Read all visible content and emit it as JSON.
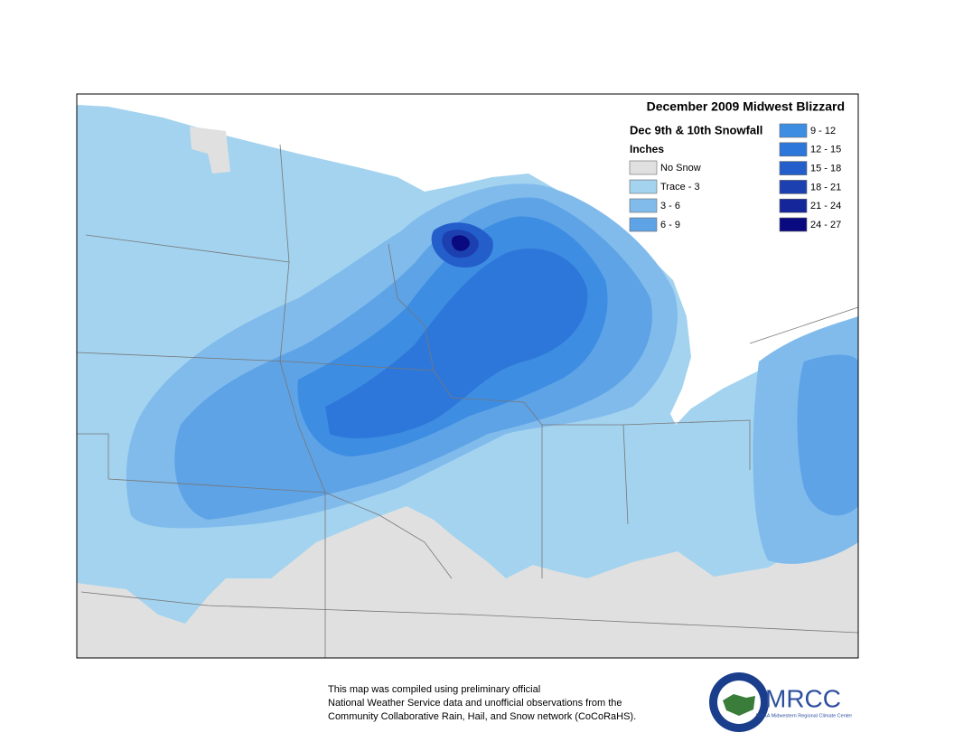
{
  "map": {
    "title": "December 2009 Midwest Blizzard",
    "subtitle": "Dec 9th & 10th Snowfall",
    "units": "Inches",
    "legend": [
      {
        "label": "No Snow",
        "color": "#e0e0e0"
      },
      {
        "label": "Trace - 3",
        "color": "#a3d3ef"
      },
      {
        "label": "3 - 6",
        "color": "#80bbec"
      },
      {
        "label": "6 - 9",
        "color": "#5ea3e6"
      },
      {
        "label": "9 - 12",
        "color": "#3d8de3"
      },
      {
        "label": "12 - 15",
        "color": "#2e77da"
      },
      {
        "label": "15 - 18",
        "color": "#245ecb"
      },
      {
        "label": "18 - 21",
        "color": "#1c40b0"
      },
      {
        "label": "21 - 24",
        "color": "#15259a"
      },
      {
        "label": "24 - 27",
        "color": "#0a0a80"
      }
    ]
  },
  "footer": {
    "lines": [
      "This map was compiled using preliminary official",
      "National Weather Service data and unofficial observations from the",
      "Community Collaborative Rain, Hail, and Snow network (CoCoRaHS)."
    ]
  },
  "logo": {
    "name": "MRCC",
    "org": "NOAA Midwestern Regional Climate Center"
  }
}
